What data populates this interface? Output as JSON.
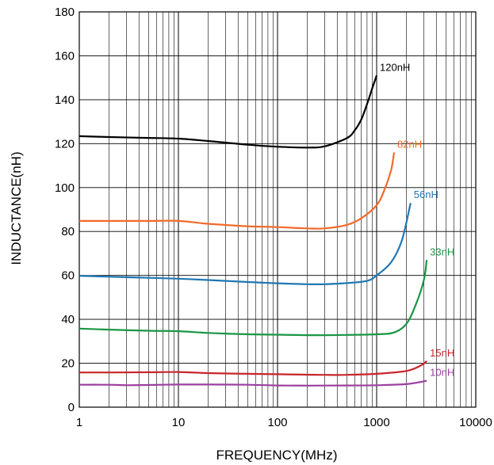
{
  "chart_data": {
    "type": "line",
    "title": "",
    "xlabel": "FREQUENCY(MHz)",
    "ylabel": "INDUCTANCE(nH)",
    "x_scale": "log",
    "xlim": [
      1,
      10000
    ],
    "ylim": [
      0,
      180
    ],
    "grid": true,
    "x_ticks": [
      1,
      10,
      100,
      1000,
      10000
    ],
    "x_tick_labels": [
      "1",
      "10",
      "100",
      "1000",
      "10000"
    ],
    "y_ticks": [
      0,
      20,
      40,
      60,
      80,
      100,
      120,
      140,
      160,
      180
    ],
    "y_tick_labels": [
      "0",
      "20",
      "40",
      "60",
      "80",
      "100",
      "120",
      "140",
      "160",
      "180"
    ],
    "series": [
      {
        "name": "120nH",
        "color": "#000000",
        "points": [
          [
            1,
            123.4
          ],
          [
            2,
            123.0
          ],
          [
            5,
            122.6
          ],
          [
            10,
            122.3
          ],
          [
            20,
            121.2
          ],
          [
            50,
            119.5
          ],
          [
            100,
            118.6
          ],
          [
            200,
            118.2
          ],
          [
            300,
            118.8
          ],
          [
            500,
            122.5
          ],
          [
            600,
            126.0
          ],
          [
            700,
            131.0
          ],
          [
            800,
            138.0
          ],
          [
            900,
            145.0
          ],
          [
            1000,
            151.0
          ]
        ]
      },
      {
        "name": "82nH",
        "color": "#f26b2a",
        "points": [
          [
            1,
            84.8
          ],
          [
            2,
            84.8
          ],
          [
            5,
            84.8
          ],
          [
            10,
            84.8
          ],
          [
            20,
            83.5
          ],
          [
            50,
            82.4
          ],
          [
            100,
            82.0
          ],
          [
            200,
            81.4
          ],
          [
            300,
            81.4
          ],
          [
            500,
            83.0
          ],
          [
            700,
            86.0
          ],
          [
            1000,
            92.0
          ],
          [
            1200,
            99.0
          ],
          [
            1400,
            108.0
          ],
          [
            1500,
            116.0
          ]
        ]
      },
      {
        "name": "56nH",
        "color": "#1f77b4",
        "points": [
          [
            1,
            59.8
          ],
          [
            2,
            59.4
          ],
          [
            5,
            58.9
          ],
          [
            10,
            58.5
          ],
          [
            20,
            57.9
          ],
          [
            50,
            57.0
          ],
          [
            100,
            56.4
          ],
          [
            200,
            56.0
          ],
          [
            300,
            56.0
          ],
          [
            500,
            56.5
          ],
          [
            800,
            57.5
          ],
          [
            1000,
            60.0
          ],
          [
            1400,
            66.0
          ],
          [
            1800,
            76.0
          ],
          [
            2200,
            93.0
          ]
        ]
      },
      {
        "name": "33nH",
        "color": "#1a9645",
        "points": [
          [
            1,
            35.8
          ],
          [
            2,
            35.3
          ],
          [
            5,
            34.8
          ],
          [
            10,
            34.6
          ],
          [
            20,
            33.8
          ],
          [
            50,
            33.2
          ],
          [
            100,
            33.0
          ],
          [
            200,
            32.8
          ],
          [
            300,
            32.8
          ],
          [
            500,
            32.9
          ],
          [
            1000,
            33.2
          ],
          [
            1500,
            34.0
          ],
          [
            2000,
            38.0
          ],
          [
            2500,
            47.0
          ],
          [
            3000,
            58.0
          ],
          [
            3200,
            67.0
          ]
        ]
      },
      {
        "name": "15nH",
        "color": "#c8252c",
        "points": [
          [
            1,
            15.8
          ],
          [
            2,
            15.8
          ],
          [
            5,
            15.9
          ],
          [
            10,
            16.0
          ],
          [
            20,
            15.5
          ],
          [
            50,
            15.2
          ],
          [
            100,
            15.0
          ],
          [
            200,
            14.8
          ],
          [
            300,
            14.7
          ],
          [
            500,
            14.7
          ],
          [
            1000,
            15.2
          ],
          [
            2000,
            16.5
          ],
          [
            2800,
            19.0
          ],
          [
            3200,
            21.0
          ]
        ]
      },
      {
        "name": "10nH",
        "color": "#9c3fa0",
        "points": [
          [
            1,
            10.2
          ],
          [
            2,
            10.2
          ],
          [
            3,
            10.0
          ],
          [
            5,
            10.1
          ],
          [
            10,
            10.3
          ],
          [
            20,
            10.3
          ],
          [
            50,
            10.2
          ],
          [
            100,
            9.9
          ],
          [
            200,
            9.8
          ],
          [
            500,
            9.9
          ],
          [
            1000,
            10.0
          ],
          [
            2000,
            10.5
          ],
          [
            3200,
            12.0
          ]
        ]
      }
    ]
  }
}
